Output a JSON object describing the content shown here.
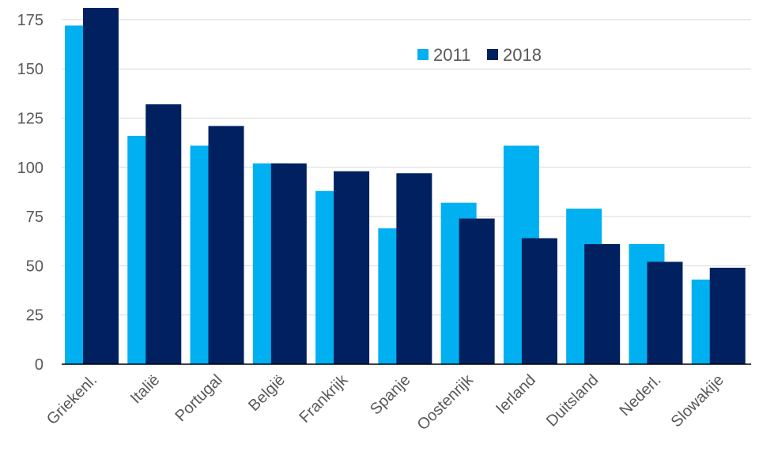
{
  "chart_data": {
    "type": "bar",
    "categories": [
      "Griekenl.",
      "Italië",
      "Portugal",
      "België",
      "Frankrijk",
      "Spanje",
      "Oostenrijk",
      "Ierland",
      "Duitsland",
      "Nederl.",
      "Slowakije"
    ],
    "series": [
      {
        "name": "2011",
        "color": "#00b0f0",
        "values": [
          172,
          116,
          111,
          102,
          88,
          69,
          82,
          111,
          79,
          61,
          43
        ]
      },
      {
        "name": "2018",
        "color": "#002060",
        "values": [
          181,
          132,
          121,
          102,
          98,
          97,
          74,
          64,
          61,
          52,
          49
        ]
      }
    ],
    "title": "",
    "xlabel": "",
    "ylabel": "",
    "ylim": [
      0,
      185
    ],
    "yticks": [
      0,
      25,
      50,
      75,
      100,
      125,
      150,
      175
    ],
    "grid": true,
    "legend_position": "top-right"
  }
}
